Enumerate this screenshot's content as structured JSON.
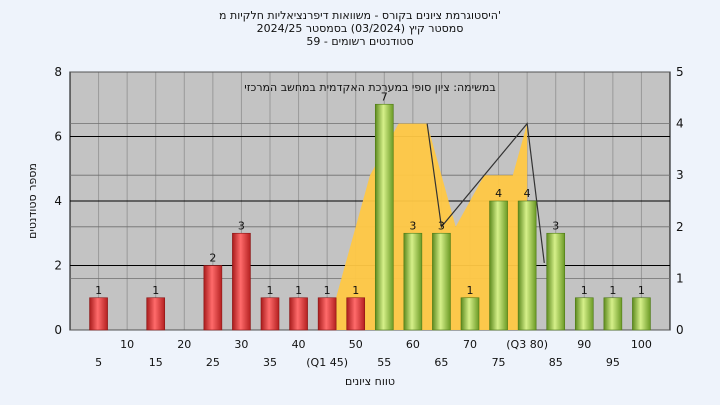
{
  "titles": {
    "line1": "היסטוגרמת ציונים בקורס - משוואות דיפרנציאליות חלקיות מ'",
    "line2": "2024/25  סמסטר קיץ  (03/2024)  בסמסטר",
    "line3": "59 - סטודנטים רשומים"
  },
  "chart_data": {
    "type": "bar",
    "annotation": "במשימה: ציון סופי במערכת האקדמית במחשב המרכזי",
    "xlabel": "טווח ציונים",
    "ylabel": "מספר סטודנטים",
    "ylim": [
      0,
      8
    ],
    "y2lim": [
      0,
      5
    ],
    "yticks": [
      0,
      2,
      4,
      6,
      8
    ],
    "y2ticks": [
      0,
      1,
      2,
      3,
      4,
      5
    ],
    "xticks_row1": [
      "5",
      "15",
      "25",
      "35",
      "(Q1 45)",
      "55",
      "65",
      "75",
      "85",
      "95"
    ],
    "xticks_row2": [
      "10",
      "20",
      "30",
      "40",
      "50",
      "60",
      "70",
      "(Q3 80)",
      "90",
      "100"
    ],
    "bars": [
      {
        "x": 5,
        "value": 1,
        "color": "red"
      },
      {
        "x": 15,
        "value": 1,
        "color": "red"
      },
      {
        "x": 25,
        "value": 2,
        "color": "red"
      },
      {
        "x": 30,
        "value": 3,
        "color": "red"
      },
      {
        "x": 35,
        "value": 1,
        "color": "red"
      },
      {
        "x": 40,
        "value": 1,
        "color": "red"
      },
      {
        "x": 45,
        "value": 1,
        "color": "red"
      },
      {
        "x": 50,
        "value": 1,
        "color": "red"
      },
      {
        "x": 55,
        "value": 7,
        "color": "green"
      },
      {
        "x": 60,
        "value": 3,
        "color": "green"
      },
      {
        "x": 65,
        "value": 3,
        "color": "green"
      },
      {
        "x": 70,
        "value": 1,
        "color": "green"
      },
      {
        "x": 75,
        "value": 4,
        "color": "green"
      },
      {
        "x": 80,
        "value": 4,
        "color": "green"
      },
      {
        "x": 85,
        "value": 3,
        "color": "green"
      },
      {
        "x": 90,
        "value": 1,
        "color": "green"
      },
      {
        "x": 95,
        "value": 1,
        "color": "green"
      },
      {
        "x": 100,
        "value": 1,
        "color": "green"
      }
    ],
    "area_secondary": [
      [
        45,
        0
      ],
      [
        47.5,
        1
      ],
      [
        52.5,
        3
      ],
      [
        57.5,
        4
      ],
      [
        62.5,
        4
      ],
      [
        67.5,
        2
      ],
      [
        72.5,
        3
      ],
      [
        77.5,
        3
      ],
      [
        80,
        4
      ]
    ],
    "line_secondary": [
      [
        62.5,
        4
      ],
      [
        65,
        2
      ],
      [
        80,
        4
      ],
      [
        83,
        1.3
      ]
    ],
    "colors": {
      "red": "#e23b3b",
      "green": "#8fbf3c",
      "area": "#ffc844",
      "plot_bg": "#c3c3c3"
    }
  }
}
